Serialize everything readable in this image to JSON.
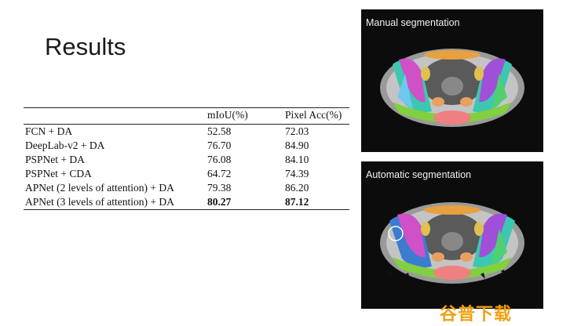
{
  "slide": {
    "title": "Results"
  },
  "table": {
    "headers": [
      "",
      "mIoU(%)",
      "Pixel Acc(%)"
    ],
    "rows": [
      {
        "method": "FCN + DA",
        "miou": "52.58",
        "pixel_acc": "72.03",
        "bold": false
      },
      {
        "method": "DeepLab-v2 + DA",
        "miou": "76.70",
        "pixel_acc": "84.90",
        "bold": false
      },
      {
        "method": "PSPNet + DA",
        "miou": "76.08",
        "pixel_acc": "84.10",
        "bold": false
      },
      {
        "method": "PSPNet + CDA",
        "miou": "64.72",
        "pixel_acc": "74.39",
        "bold": false
      },
      {
        "method": "APNet (2 levels of attention) + DA",
        "miou": "79.38",
        "pixel_acc": "86.20",
        "bold": false
      },
      {
        "method": "APNet (3 levels of attention) + DA",
        "miou": "80.27",
        "pixel_acc": "87.12",
        "bold": true
      }
    ]
  },
  "panels": {
    "manual": {
      "label": "Manual segmentation"
    },
    "automatic": {
      "label": "Automatic segmentation"
    }
  },
  "watermark": {
    "text": "谷普下载"
  }
}
